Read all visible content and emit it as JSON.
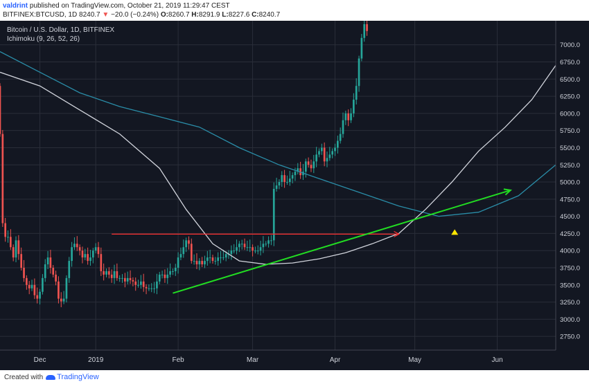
{
  "header": {
    "author": "valdrint",
    "published": "published on TradingView.com, October 21, 2019 11:29:47 CEST",
    "symbol": "BITFINEX:BTCUSD, 1D",
    "last": "8240.7",
    "change": "−20.0 (−0.24%)",
    "o_label": "O:",
    "o_value": "8260.7",
    "h_label": "H:",
    "h_value": "8291.9",
    "l_label": "L:",
    "l_value": "8227.6",
    "c_label": "C:",
    "c_value": "8240.7"
  },
  "footer": {
    "created_with": "Created with",
    "brand": "TradingView"
  },
  "colors": {
    "background": "#131722",
    "grid": "#2a2e39",
    "up": "#26a69a",
    "down": "#ef5350",
    "ma_fast": "#d1d4dc",
    "ma_slow": "#2a8da8",
    "support": "#22dd22",
    "resistance": "#ff3030",
    "marker": "#ffe600"
  },
  "chart_data": {
    "type": "candlestick",
    "title": "Bitcoin / U.S. Dollar, 1D, BITFINEX",
    "indicator": "Ichimoku (9, 26, 52, 26)",
    "y_ticks": [
      "2750.0",
      "3000.0",
      "3250.0",
      "3500.0",
      "3750.0",
      "4000.0",
      "4250.0",
      "4500.0",
      "4750.0",
      "5000.0",
      "5250.0",
      "5500.0",
      "5750.0",
      "6000.0",
      "6250.0",
      "6500.0",
      "6750.0",
      "7000.0"
    ],
    "ylim": [
      2550,
      7350
    ],
    "x_ticks": [
      {
        "label": "Dec",
        "day": 10
      },
      {
        "label": "2019",
        "day": 31
      },
      {
        "label": "Feb",
        "day": 62
      },
      {
        "label": "Mar",
        "day": 90
      },
      {
        "label": "Apr",
        "day": 121
      },
      {
        "label": "May",
        "day": 151
      },
      {
        "label": "Jun",
        "day": 182
      }
    ],
    "xlim": [
      -5,
      204
    ],
    "x_start_date": "2018-11-26",
    "grid": true,
    "closes": [
      5700,
      4400,
      4200,
      4200,
      4050,
      3900,
      4150,
      3950,
      3750,
      3600,
      3500,
      3450,
      3500,
      3350,
      3300,
      3400,
      3600,
      3800,
      3900,
      3750,
      3650,
      3550,
      3300,
      3260,
      3300,
      3600,
      3850,
      4050,
      4100,
      4050,
      4000,
      3900,
      3950,
      3850,
      3900,
      4000,
      4050,
      3950,
      3700,
      3650,
      3700,
      3650,
      3600,
      3700,
      3600,
      3600,
      3600,
      3550,
      3600,
      3570,
      3550,
      3500,
      3500,
      3550,
      3470,
      3450,
      3450,
      3450,
      3450,
      3550,
      3650,
      3650,
      3600,
      3650,
      3700,
      3700,
      3750,
      3900,
      3950,
      4050,
      4150,
      4100,
      3850,
      3850,
      3800,
      3850,
      3800,
      3850,
      3900,
      3900,
      3850,
      3850,
      3900,
      3900,
      3900,
      3950,
      3950,
      4000,
      4000,
      4050,
      4100,
      4100,
      4050,
      4050,
      4050,
      4000,
      4000,
      4000,
      4050,
      4100,
      4100,
      4150,
      4150,
      4900,
      4950,
      5000,
      5100,
      5000,
      5000,
      5050,
      5100,
      5150,
      5200,
      5100,
      5150,
      5300,
      5250,
      5200,
      5300,
      5400,
      5450,
      5500,
      5300,
      5350,
      5400,
      5450,
      5500,
      5600,
      5700,
      5900,
      6000,
      5900,
      6000,
      6200,
      6400,
      6800,
      7100,
      7300,
      7200
    ],
    "first_candle_day": 0,
    "first_candle_day_offset": 5,
    "ma_fast_points": [
      [
        -5,
        6600
      ],
      [
        10,
        6400
      ],
      [
        25,
        6050
      ],
      [
        40,
        5700
      ],
      [
        55,
        5200
      ],
      [
        65,
        4600
      ],
      [
        75,
        4100
      ],
      [
        85,
        3850
      ],
      [
        95,
        3800
      ],
      [
        105,
        3820
      ],
      [
        115,
        3880
      ],
      [
        125,
        3970
      ],
      [
        135,
        4100
      ],
      [
        145,
        4250
      ],
      [
        155,
        4600
      ],
      [
        165,
        5000
      ],
      [
        175,
        5450
      ],
      [
        185,
        5800
      ],
      [
        195,
        6200
      ],
      [
        204,
        6700
      ]
    ],
    "ma_slow_points": [
      [
        -5,
        6900
      ],
      [
        10,
        6600
      ],
      [
        25,
        6300
      ],
      [
        40,
        6100
      ],
      [
        55,
        5950
      ],
      [
        70,
        5800
      ],
      [
        85,
        5500
      ],
      [
        100,
        5250
      ],
      [
        115,
        5050
      ],
      [
        130,
        4850
      ],
      [
        145,
        4650
      ],
      [
        160,
        4500
      ],
      [
        175,
        4560
      ],
      [
        190,
        4800
      ],
      [
        204,
        5250
      ]
    ],
    "support_line": {
      "from": [
        60,
        3380
      ],
      "to": [
        187,
        4880
      ]
    },
    "resistance_line": {
      "from": [
        37,
        4240
      ],
      "to": [
        145,
        4240
      ]
    },
    "marker": {
      "day": 166,
      "value": 4270
    }
  }
}
